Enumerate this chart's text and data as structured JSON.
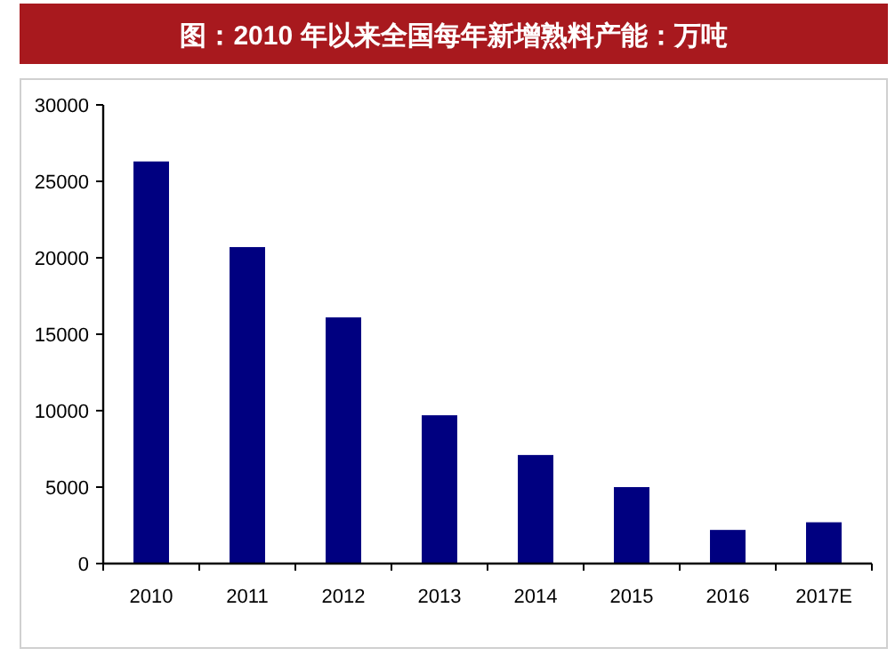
{
  "chart_data": {
    "type": "bar",
    "title": "图：2010 年以来全国每年新增熟料产能：万吨",
    "categories": [
      "2010",
      "2011",
      "2012",
      "2013",
      "2014",
      "2015",
      "2016",
      "2017E"
    ],
    "values": [
      26300,
      20700,
      16100,
      9700,
      7100,
      5000,
      2200,
      2700
    ],
    "color": "#000080",
    "ylim": [
      0,
      30000
    ],
    "yticks": [
      0,
      5000,
      10000,
      15000,
      20000,
      25000,
      30000
    ],
    "grid": false
  }
}
